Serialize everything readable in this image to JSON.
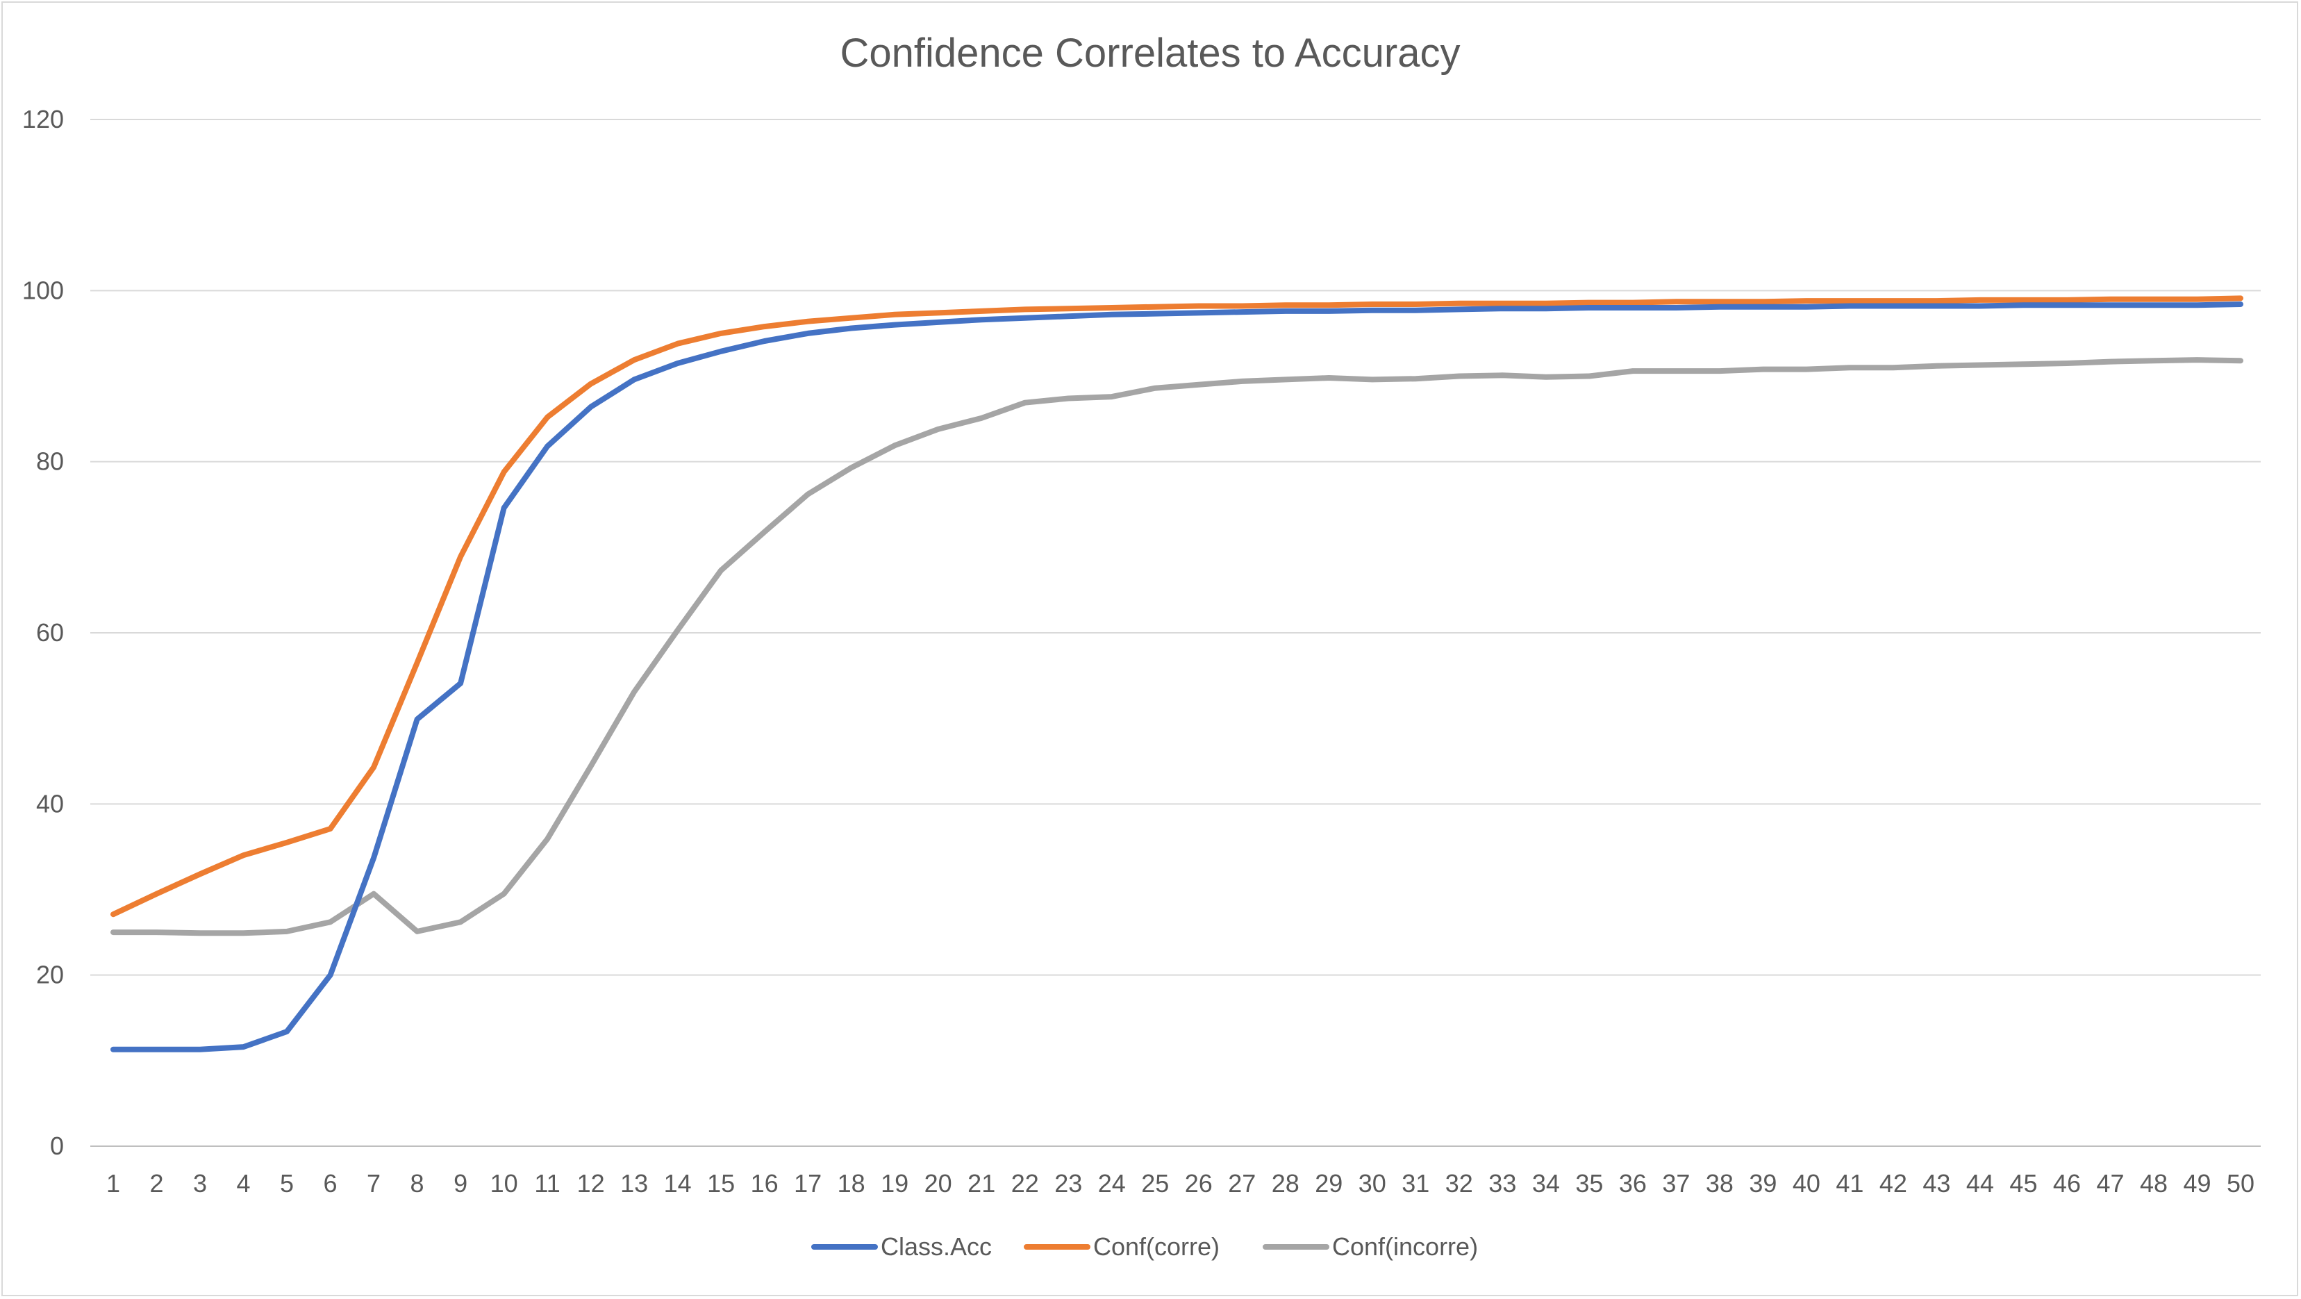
{
  "chart_data": {
    "type": "line",
    "title": "Confidence Correlates to Accuracy",
    "xlabel": "",
    "ylabel": "",
    "ylim": [
      0,
      120
    ],
    "yticks": [
      0,
      20,
      40,
      60,
      80,
      100,
      120
    ],
    "grid": true,
    "legend": "bottom",
    "x": [
      1,
      2,
      3,
      4,
      5,
      6,
      7,
      8,
      9,
      10,
      11,
      12,
      13,
      14,
      15,
      16,
      17,
      18,
      19,
      20,
      21,
      22,
      23,
      24,
      25,
      26,
      27,
      28,
      29,
      30,
      31,
      32,
      33,
      34,
      35,
      36,
      37,
      38,
      39,
      40,
      41,
      42,
      43,
      44,
      45,
      46,
      47,
      48,
      49,
      50
    ],
    "series": [
      {
        "name": "Class.Acc",
        "color": "#4472c4",
        "values": [
          11.3,
          11.3,
          11.3,
          11.6,
          13.4,
          20.0,
          33.7,
          49.9,
          54.1,
          74.6,
          81.8,
          86.4,
          89.6,
          91.5,
          92.9,
          94.1,
          95.0,
          95.6,
          96.0,
          96.3,
          96.6,
          96.8,
          97.0,
          97.2,
          97.3,
          97.4,
          97.5,
          97.6,
          97.6,
          97.7,
          97.7,
          97.8,
          97.9,
          97.9,
          98.0,
          98.0,
          98.0,
          98.1,
          98.1,
          98.1,
          98.2,
          98.2,
          98.2,
          98.2,
          98.3,
          98.3,
          98.3,
          98.3,
          98.3,
          98.4
        ]
      },
      {
        "name": "Conf(corre)",
        "color": "#ed7d31",
        "values": [
          27.1,
          29.5,
          31.8,
          34.0,
          35.5,
          37.1,
          44.3,
          56.5,
          68.9,
          78.8,
          85.2,
          89.1,
          91.9,
          93.8,
          95.0,
          95.8,
          96.4,
          96.8,
          97.2,
          97.4,
          97.6,
          97.8,
          97.9,
          98.0,
          98.1,
          98.2,
          98.2,
          98.3,
          98.3,
          98.4,
          98.4,
          98.5,
          98.5,
          98.5,
          98.6,
          98.6,
          98.7,
          98.7,
          98.7,
          98.8,
          98.8,
          98.8,
          98.8,
          98.9,
          98.9,
          98.9,
          99.0,
          99.0,
          99.0,
          99.1
        ]
      },
      {
        "name": "Conf(incorre)",
        "color": "#a5a5a5",
        "values": [
          25.0,
          25.0,
          24.9,
          24.9,
          25.1,
          26.2,
          29.5,
          25.1,
          26.2,
          29.5,
          35.9,
          44.4,
          53.1,
          60.3,
          67.3,
          71.8,
          76.2,
          79.3,
          81.9,
          83.8,
          85.1,
          86.9,
          87.4,
          87.6,
          88.6,
          89.0,
          89.4,
          89.6,
          89.8,
          89.6,
          89.7,
          90.0,
          90.1,
          89.9,
          90.0,
          90.6,
          90.6,
          90.6,
          90.8,
          90.8,
          91.0,
          91.0,
          91.2,
          91.3,
          91.4,
          91.5,
          91.7,
          91.8,
          91.9,
          91.8
        ]
      }
    ]
  }
}
